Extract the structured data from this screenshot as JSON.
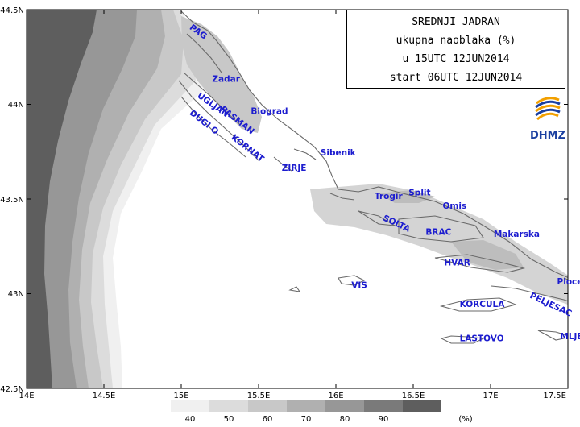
{
  "title": {
    "line1": "SREDNJI JADRAN",
    "line2": "ukupna naoblaka (%)",
    "line3": "u 15UTC 12JUN2014",
    "line4": "start 06UTC 12JUN2014"
  },
  "logo": {
    "text": "DHMZ",
    "icon": "dhmz-logo-icon",
    "colors": [
      "#1a3fa0",
      "#f2a000"
    ]
  },
  "axes": {
    "lat_labels": [
      "44.5N",
      "44N",
      "43.5N",
      "43N",
      "42.5N"
    ],
    "lon_labels": [
      "14E",
      "14.5E",
      "15E",
      "15.5E",
      "16E",
      "16.5E",
      "17E",
      "17.5E"
    ],
    "lon_range": [
      14,
      17.5
    ],
    "lat_range": [
      42.5,
      44.5
    ]
  },
  "places": [
    {
      "name": "PAG",
      "lon": 15.05,
      "lat": 44.4
    },
    {
      "name": "Zadar",
      "lon": 15.2,
      "lat": 44.12
    },
    {
      "name": "UGLJAN",
      "lon": 15.1,
      "lat": 44.04
    },
    {
      "name": "PASMAN",
      "lon": 15.25,
      "lat": 43.97
    },
    {
      "name": "Biograd",
      "lon": 15.45,
      "lat": 43.95
    },
    {
      "name": "DUGI O.",
      "lon": 15.05,
      "lat": 43.95
    },
    {
      "name": "KORNAT",
      "lon": 15.32,
      "lat": 43.82
    },
    {
      "name": "ZIRJE",
      "lon": 15.65,
      "lat": 43.65
    },
    {
      "name": "Sibenik",
      "lon": 15.9,
      "lat": 43.73
    },
    {
      "name": "Trogir",
      "lon": 16.25,
      "lat": 43.5
    },
    {
      "name": "Split",
      "lon": 16.47,
      "lat": 43.52
    },
    {
      "name": "Omis",
      "lon": 16.69,
      "lat": 43.45
    },
    {
      "name": "SOLTA",
      "lon": 16.3,
      "lat": 43.39
    },
    {
      "name": "BRAC",
      "lon": 16.58,
      "lat": 43.31
    },
    {
      "name": "Makarska",
      "lon": 17.02,
      "lat": 43.3
    },
    {
      "name": "HVAR",
      "lon": 16.7,
      "lat": 43.15
    },
    {
      "name": "Ploce",
      "lon": 17.43,
      "lat": 43.05
    },
    {
      "name": "VIS",
      "lon": 16.1,
      "lat": 43.03
    },
    {
      "name": "PELJESAC",
      "lon": 17.25,
      "lat": 42.98
    },
    {
      "name": "KORCULA",
      "lon": 16.8,
      "lat": 42.93
    },
    {
      "name": "MLJET",
      "lon": 17.45,
      "lat": 42.76
    },
    {
      "name": "LASTOVO",
      "lon": 16.8,
      "lat": 42.75
    }
  ],
  "legend": {
    "labels": [
      "40",
      "50",
      "60",
      "70",
      "80",
      "90"
    ],
    "unit": "(%)",
    "colors": [
      "#f0f0f0",
      "#dcdcdc",
      "#c8c8c8",
      "#b0b0b0",
      "#979797",
      "#7a7a7a",
      "#5e5e5e"
    ]
  },
  "colors": {
    "place_label": "#1c1ccf",
    "coastline": "#6a6a6a"
  }
}
